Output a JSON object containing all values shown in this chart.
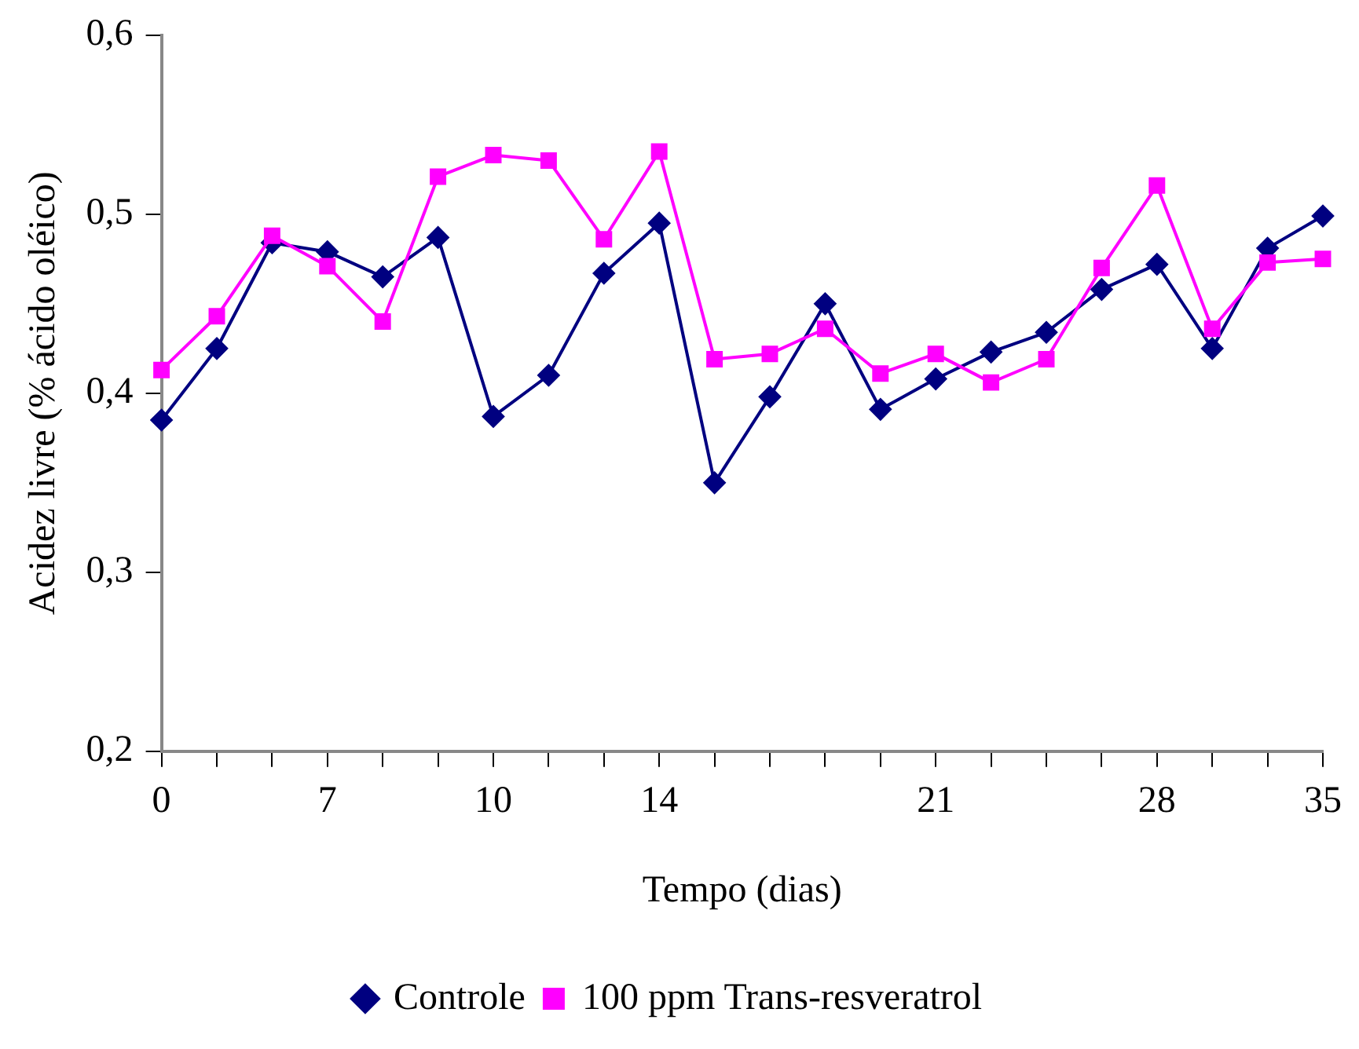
{
  "chart_data": {
    "type": "line",
    "xlabel": "Tempo (dias)",
    "ylabel": "Acidez livre (% ácido oléico)",
    "categories": [
      "0",
      null,
      null,
      "7",
      null,
      null,
      "10",
      null,
      null,
      "14",
      null,
      null,
      null,
      null,
      "21",
      null,
      null,
      null,
      "28",
      null,
      null,
      "35"
    ],
    "series": [
      {
        "name": "Controle",
        "color": "#000080",
        "marker": "diamond",
        "values": [
          0.385,
          0.425,
          0.484,
          0.479,
          0.465,
          0.487,
          0.387,
          0.41,
          0.467,
          0.495,
          0.35,
          0.398,
          0.45,
          0.391,
          0.408,
          0.423,
          0.434,
          0.458,
          0.472,
          0.425,
          0.481,
          0.499
        ]
      },
      {
        "name": "100 ppm Trans-resveratrol",
        "color": "#ff00ff",
        "marker": "square",
        "values": [
          0.413,
          0.443,
          0.488,
          0.471,
          0.44,
          0.521,
          0.533,
          0.53,
          0.486,
          0.535,
          0.419,
          0.422,
          0.436,
          0.411,
          0.422,
          0.406,
          0.419,
          0.47,
          0.516,
          0.436,
          0.473,
          0.475
        ]
      }
    ],
    "ylim": [
      0.2,
      0.6
    ],
    "yticks": [
      {
        "value": 0.2,
        "label": "0,2"
      },
      {
        "value": 0.3,
        "label": "0,3"
      },
      {
        "value": 0.4,
        "label": "0,4"
      },
      {
        "value": 0.5,
        "label": "0,5"
      },
      {
        "value": 0.6,
        "label": "0,6"
      }
    ],
    "grid": false,
    "legend": "bottom",
    "line_style": "solid"
  }
}
